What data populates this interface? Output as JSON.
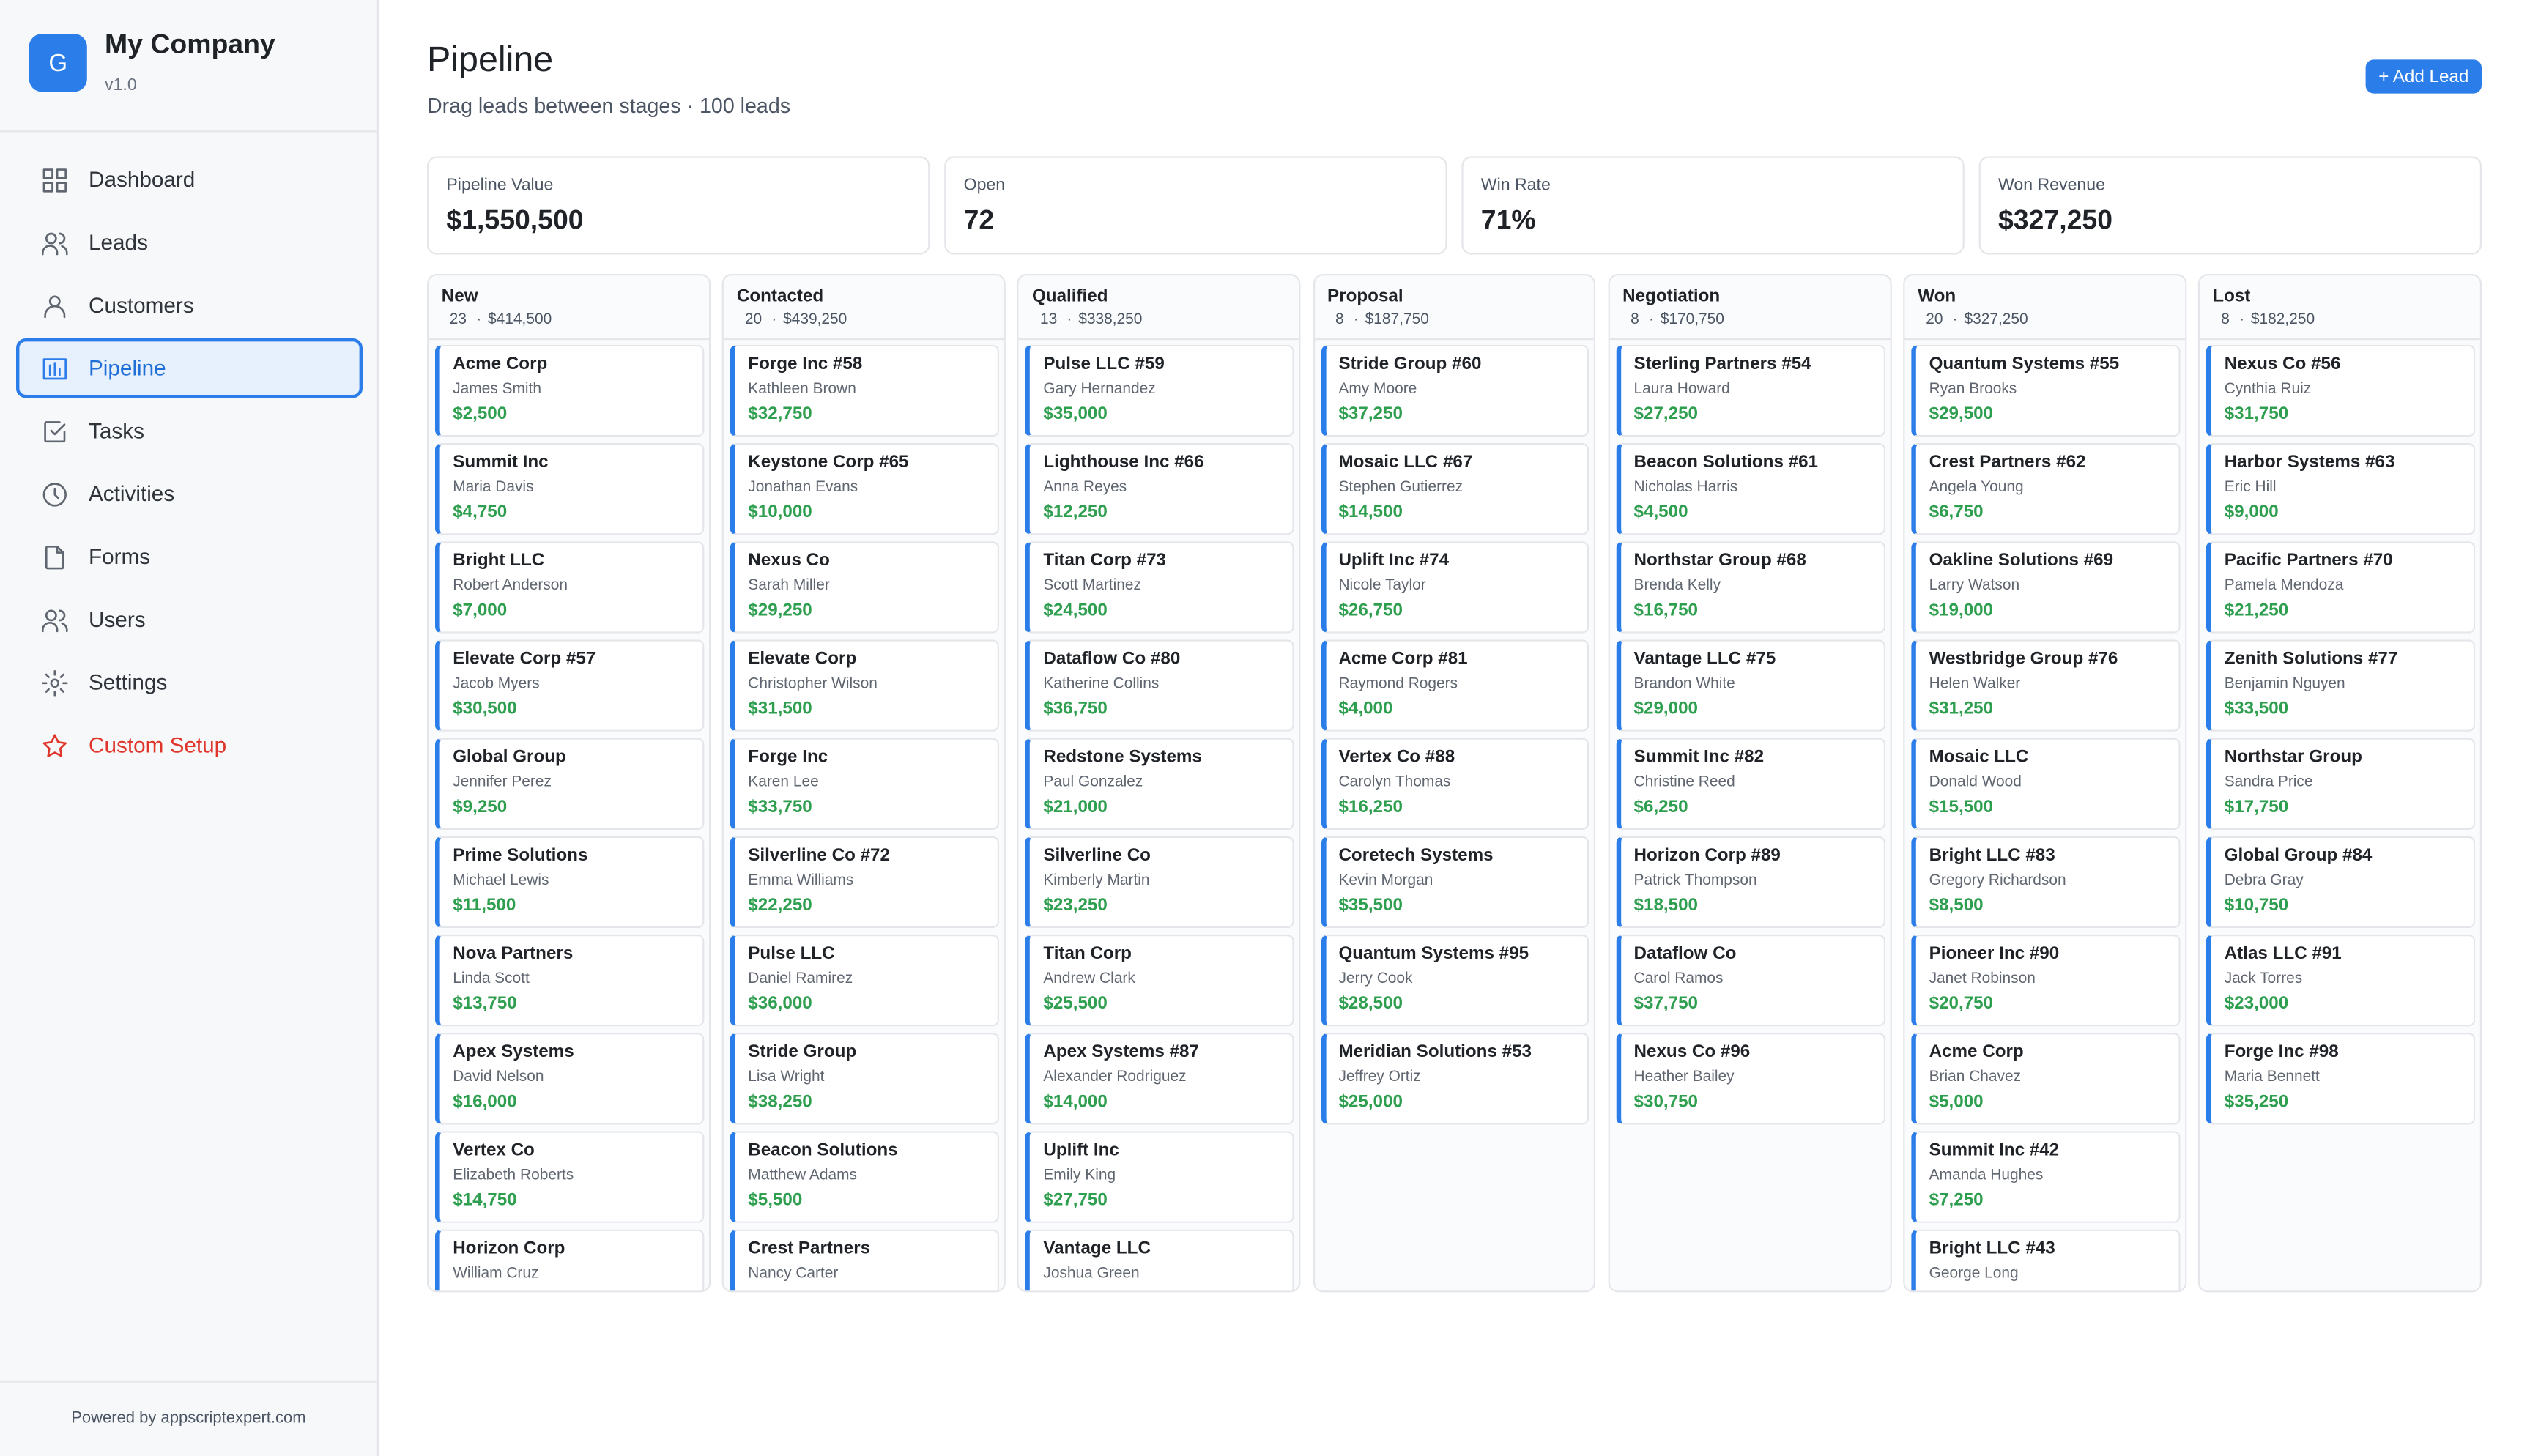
{
  "sidebar": {
    "logo": "G",
    "company": "My Company",
    "version": "v1.0",
    "nav": [
      "Dashboard",
      "Leads",
      "Customers",
      "Pipeline",
      "Tasks",
      "Activities",
      "Forms",
      "Users",
      "Settings",
      "Custom Setup"
    ],
    "footer": "Powered by appscriptexpert.com"
  },
  "header": {
    "title": "Pipeline",
    "subtitle": "Drag leads between stages · 100 leads",
    "button": "+ Add Lead"
  },
  "stats": [
    {
      "label": "Pipeline Value",
      "value": "$1,550,500"
    },
    {
      "label": "Open",
      "value": "72"
    },
    {
      "label": "Win Rate",
      "value": "71%"
    },
    {
      "label": "Won Revenue",
      "value": "$327,250"
    }
  ],
  "columns": [
    {
      "title": "New",
      "count": "23",
      "total": "$414,500",
      "cards": [
        {
          "name": "Acme Corp",
          "contact": "James Smith",
          "amount": "$2,500"
        },
        {
          "name": "Summit Inc",
          "contact": "Maria Davis",
          "amount": "$4,750"
        },
        {
          "name": "Bright LLC",
          "contact": "Robert Anderson",
          "amount": "$7,000"
        },
        {
          "name": "Elevate Corp #57",
          "contact": "Jacob Myers",
          "amount": "$30,500"
        },
        {
          "name": "Global Group",
          "contact": "Jennifer Perez",
          "amount": "$9,250"
        },
        {
          "name": "Prime Solutions",
          "contact": "Michael Lewis",
          "amount": "$11,500"
        },
        {
          "name": "Nova Partners",
          "contact": "Linda Scott",
          "amount": "$13,750"
        },
        {
          "name": "Apex Systems",
          "contact": "David Nelson",
          "amount": "$16,000"
        },
        {
          "name": "Vertex Co",
          "contact": "Elizabeth Roberts",
          "amount": "$14,750"
        },
        {
          "name": "Horizon Corp",
          "contact": "William Cruz"
        }
      ]
    },
    {
      "title": "Contacted",
      "count": "20",
      "total": "$439,250",
      "cards": [
        {
          "name": "Forge Inc #58",
          "contact": "Kathleen Brown",
          "amount": "$32,750"
        },
        {
          "name": "Keystone Corp #65",
          "contact": "Jonathan Evans",
          "amount": "$10,000"
        },
        {
          "name": "Nexus Co",
          "contact": "Sarah Miller",
          "amount": "$29,250"
        },
        {
          "name": "Elevate Corp",
          "contact": "Christopher Wilson",
          "amount": "$31,500"
        },
        {
          "name": "Forge Inc",
          "contact": "Karen Lee",
          "amount": "$33,750"
        },
        {
          "name": "Silverline Co #72",
          "contact": "Emma Williams",
          "amount": "$22,250"
        },
        {
          "name": "Pulse LLC",
          "contact": "Daniel Ramirez",
          "amount": "$36,000"
        },
        {
          "name": "Stride Group",
          "contact": "Lisa Wright",
          "amount": "$38,250"
        },
        {
          "name": "Beacon Solutions",
          "contact": "Matthew Adams",
          "amount": "$5,500"
        },
        {
          "name": "Crest Partners",
          "contact": "Nancy Carter"
        }
      ]
    },
    {
      "title": "Qualified",
      "count": "13",
      "total": "$338,250",
      "cards": [
        {
          "name": "Pulse LLC #59",
          "contact": "Gary Hernandez",
          "amount": "$35,000"
        },
        {
          "name": "Lighthouse Inc #66",
          "contact": "Anna Reyes",
          "amount": "$12,250"
        },
        {
          "name": "Titan Corp #73",
          "contact": "Scott Martinez",
          "amount": "$24,500"
        },
        {
          "name": "Dataflow Co #80",
          "contact": "Katherine Collins",
          "amount": "$36,750"
        },
        {
          "name": "Redstone Systems",
          "contact": "Paul Gonzalez",
          "amount": "$21,000"
        },
        {
          "name": "Silverline Co",
          "contact": "Kimberly Martin",
          "amount": "$23,250"
        },
        {
          "name": "Titan Corp",
          "contact": "Andrew Clark",
          "amount": "$25,500"
        },
        {
          "name": "Apex Systems #87",
          "contact": "Alexander Rodriguez",
          "amount": "$14,000"
        },
        {
          "name": "Uplift Inc",
          "contact": "Emily King",
          "amount": "$27,750"
        },
        {
          "name": "Vantage LLC",
          "contact": "Joshua Green"
        }
      ]
    },
    {
      "title": "Proposal",
      "count": "8",
      "total": "$187,750",
      "cards": [
        {
          "name": "Stride Group #60",
          "contact": "Amy Moore",
          "amount": "$37,250"
        },
        {
          "name": "Mosaic LLC #67",
          "contact": "Stephen Gutierrez",
          "amount": "$14,500"
        },
        {
          "name": "Uplift Inc #74",
          "contact": "Nicole Taylor",
          "amount": "$26,750"
        },
        {
          "name": "Acme Corp #81",
          "contact": "Raymond Rogers",
          "amount": "$4,000"
        },
        {
          "name": "Vertex Co #88",
          "contact": "Carolyn Thomas",
          "amount": "$16,250"
        },
        {
          "name": "Coretech Systems",
          "contact": "Kevin Morgan",
          "amount": "$35,500"
        },
        {
          "name": "Quantum Systems #95",
          "contact": "Jerry Cook",
          "amount": "$28,500"
        },
        {
          "name": "Meridian Solutions #53",
          "contact": "Jeffrey Ortiz",
          "amount": "$25,000"
        }
      ]
    },
    {
      "title": "Negotiation",
      "count": "8",
      "total": "$170,750",
      "cards": [
        {
          "name": "Sterling Partners #54",
          "contact": "Laura Howard",
          "amount": "$27,250"
        },
        {
          "name": "Beacon Solutions #61",
          "contact": "Nicholas Harris",
          "amount": "$4,500"
        },
        {
          "name": "Northstar Group #68",
          "contact": "Brenda Kelly",
          "amount": "$16,750"
        },
        {
          "name": "Vantage LLC #75",
          "contact": "Brandon White",
          "amount": "$29,000"
        },
        {
          "name": "Summit Inc #82",
          "contact": "Christine Reed",
          "amount": "$6,250"
        },
        {
          "name": "Horizon Corp #89",
          "contact": "Patrick Thompson",
          "amount": "$18,500"
        },
        {
          "name": "Dataflow Co",
          "contact": "Carol Ramos",
          "amount": "$37,750"
        },
        {
          "name": "Nexus Co #96",
          "contact": "Heather Bailey",
          "amount": "$30,750"
        }
      ]
    },
    {
      "title": "Won",
      "count": "20",
      "total": "$327,250",
      "cards": [
        {
          "name": "Quantum Systems #55",
          "contact": "Ryan Brooks",
          "amount": "$29,500"
        },
        {
          "name": "Crest Partners #62",
          "contact": "Angela Young",
          "amount": "$6,750"
        },
        {
          "name": "Oakline Solutions #69",
          "contact": "Larry Watson",
          "amount": "$19,000"
        },
        {
          "name": "Westbridge Group #76",
          "contact": "Helen Walker",
          "amount": "$31,250"
        },
        {
          "name": "Mosaic LLC",
          "contact": "Donald Wood",
          "amount": "$15,500"
        },
        {
          "name": "Bright LLC #83",
          "contact": "Gregory Richardson",
          "amount": "$8,500"
        },
        {
          "name": "Pioneer Inc #90",
          "contact": "Janet Robinson",
          "amount": "$20,750"
        },
        {
          "name": "Acme Corp",
          "contact": "Brian Chavez",
          "amount": "$5,000"
        },
        {
          "name": "Summit Inc #42",
          "contact": "Amanda Hughes",
          "amount": "$7,250"
        },
        {
          "name": "Bright LLC #43",
          "contact": "George Long"
        }
      ]
    },
    {
      "title": "Lost",
      "count": "8",
      "total": "$182,250",
      "cards": [
        {
          "name": "Nexus Co #56",
          "contact": "Cynthia Ruiz",
          "amount": "$31,750"
        },
        {
          "name": "Harbor Systems #63",
          "contact": "Eric Hill",
          "amount": "$9,000"
        },
        {
          "name": "Pacific Partners #70",
          "contact": "Pamela Mendoza",
          "amount": "$21,250"
        },
        {
          "name": "Zenith Solutions #77",
          "contact": "Benjamin Nguyen",
          "amount": "$33,500"
        },
        {
          "name": "Northstar Group",
          "contact": "Sandra Price",
          "amount": "$17,750"
        },
        {
          "name": "Global Group #84",
          "contact": "Debra Gray",
          "amount": "$10,750"
        },
        {
          "name": "Atlas LLC #91",
          "contact": "Jack Torres",
          "amount": "$23,000"
        },
        {
          "name": "Forge Inc #98",
          "contact": "Maria Bennett",
          "amount": "$35,250"
        }
      ]
    }
  ]
}
